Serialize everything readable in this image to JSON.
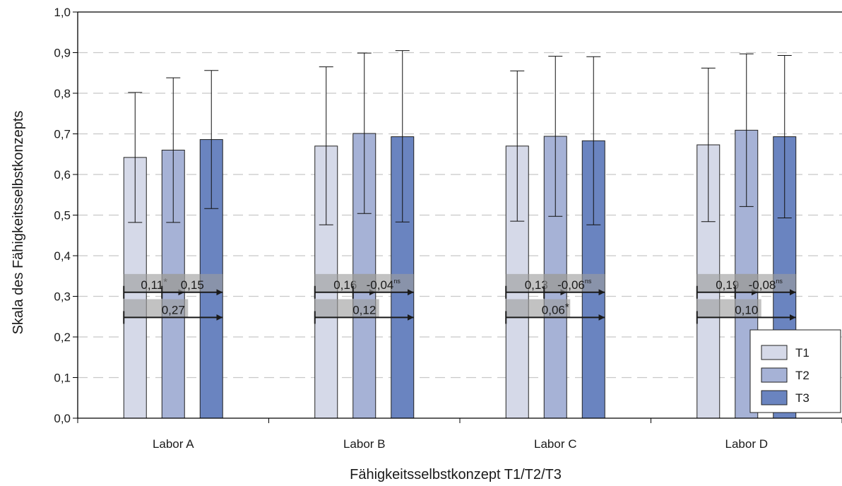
{
  "chart_data": {
    "type": "bar",
    "title": "",
    "xlabel": "Fähigkeitsselbstkonzept T1/T2/T3",
    "ylabel": "Skala des Fähigkeitsselbstkonzepts",
    "ylim": [
      0,
      1
    ],
    "yticks": [
      "0,0",
      "0,1",
      "0,2",
      "0,3",
      "0,4",
      "0,5",
      "0,6",
      "0,7",
      "0,8",
      "0,9",
      "1,0"
    ],
    "grid": "horizontal-dashed",
    "legend_position": "bottom-right",
    "categories": [
      "Labor A",
      "Labor B",
      "Labor C",
      "Labor D"
    ],
    "series": [
      {
        "name": "T1",
        "color": "#d5d9e8",
        "values": [
          0.642,
          0.67,
          0.67,
          0.673
        ],
        "err_low": [
          0.482,
          0.476,
          0.485,
          0.484
        ],
        "err_high": [
          0.802,
          0.865,
          0.855,
          0.862
        ]
      },
      {
        "name": "T2",
        "color": "#a6b2d6",
        "values": [
          0.66,
          0.701,
          0.694,
          0.709
        ],
        "err_low": [
          0.482,
          0.504,
          0.497,
          0.521
        ],
        "err_high": [
          0.838,
          0.899,
          0.891,
          0.897
        ]
      },
      {
        "name": "T3",
        "color": "#6a84c0",
        "values": [
          0.686,
          0.693,
          0.683,
          0.693
        ],
        "err_low": [
          0.516,
          0.483,
          0.476,
          0.493
        ],
        "err_high": [
          0.856,
          0.905,
          0.89,
          0.893
        ]
      }
    ],
    "effects": [
      [
        {
          "from": "T1",
          "to": "T2",
          "value": "0,11",
          "sup": "*"
        },
        {
          "from": "T2",
          "to": "T3",
          "value": "0,15",
          "sup": ""
        },
        {
          "from": "T1",
          "to": "T3",
          "value": "0,27",
          "sup": ""
        }
      ],
      [
        {
          "from": "T1",
          "to": "T2",
          "value": "0,16",
          "sup": ""
        },
        {
          "from": "T2",
          "to": "T3",
          "value": "-0,04",
          "sup": "ns"
        },
        {
          "from": "T1",
          "to": "T3",
          "value": "0,12",
          "sup": ""
        }
      ],
      [
        {
          "from": "T1",
          "to": "T2",
          "value": "0,13",
          "sup": ""
        },
        {
          "from": "T2",
          "to": "T3",
          "value": "-0,06",
          "sup": "ns"
        },
        {
          "from": "T1",
          "to": "T3",
          "value": "0,06",
          "sup": "*"
        }
      ],
      [
        {
          "from": "T1",
          "to": "T2",
          "value": "0,19",
          "sup": ""
        },
        {
          "from": "T2",
          "to": "T3",
          "value": "-0,08",
          "sup": "ns"
        },
        {
          "from": "T1",
          "to": "T3",
          "value": "0,10",
          "sup": ""
        }
      ]
    ]
  }
}
